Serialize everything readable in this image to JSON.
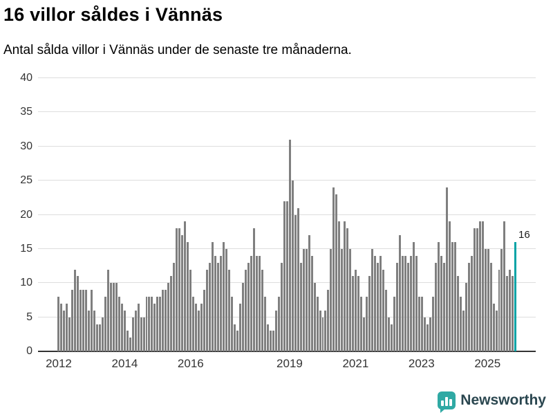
{
  "title": "16 villor såldes i Vännäs",
  "subtitle": "Antal sålda villor i Vännäs under de senaste tre månaderna.",
  "chart_data": {
    "type": "bar",
    "title": "16 villor såldes i Vännäs",
    "subtitle": "Antal sålda villor i Vännäs under de senaste tre månaderna.",
    "ylabel": "",
    "xlabel": "",
    "ylim": [
      0,
      40
    ],
    "y_ticks": [
      0,
      5,
      10,
      15,
      20,
      25,
      30,
      35,
      40
    ],
    "grid": "horizontal",
    "start_month": "2012-01",
    "frequency": "monthly",
    "x_ticks": [
      {
        "label": "2012",
        "month_index": 0
      },
      {
        "label": "2014",
        "month_index": 24
      },
      {
        "label": "2016",
        "month_index": 48
      },
      {
        "label": "2019",
        "month_index": 84
      },
      {
        "label": "2021",
        "month_index": 108
      },
      {
        "label": "2023",
        "month_index": 132
      },
      {
        "label": "2025",
        "month_index": 156
      }
    ],
    "values": [
      8,
      7,
      6,
      7,
      5,
      9,
      12,
      11,
      9,
      9,
      9,
      6,
      9,
      6,
      4,
      4,
      5,
      8,
      12,
      10,
      10,
      10,
      8,
      7,
      6,
      3,
      2,
      5,
      6,
      7,
      5,
      5,
      8,
      8,
      8,
      7,
      8,
      8,
      9,
      9,
      10,
      11,
      13,
      18,
      18,
      17,
      19,
      16,
      12,
      8,
      7,
      6,
      7,
      9,
      12,
      13,
      16,
      14,
      13,
      14,
      16,
      15,
      12,
      8,
      4,
      3,
      7,
      10,
      12,
      13,
      14,
      18,
      14,
      14,
      12,
      8,
      4,
      3,
      3,
      6,
      8,
      13,
      22,
      22,
      31,
      25,
      20,
      21,
      13,
      15,
      15,
      17,
      14,
      10,
      8,
      6,
      5,
      6,
      9,
      15,
      24,
      23,
      19,
      15,
      19,
      18,
      15,
      11,
      12,
      11,
      8,
      5,
      8,
      11,
      15,
      14,
      13,
      14,
      12,
      9,
      5,
      4,
      8,
      13,
      17,
      14,
      14,
      13,
      14,
      16,
      14,
      8,
      8,
      5,
      4,
      5,
      8,
      13,
      16,
      14,
      13,
      24,
      19,
      16,
      16,
      11,
      8,
      6,
      10,
      13,
      14,
      18,
      18,
      19,
      19,
      15,
      15,
      13,
      7,
      6,
      12,
      15,
      19,
      11,
      12,
      11,
      16
    ],
    "bar_color": "#7f7f7f",
    "highlight_last": true,
    "highlight_color": "#00a3a6",
    "highlight_value_label": "16",
    "gridline_color": "#dddddd",
    "axis_color": "#333333"
  },
  "branding": {
    "logo_text": "Newsworthy",
    "logo_accent": "#2fa9a4",
    "logo_text_color": "#2b4750"
  }
}
